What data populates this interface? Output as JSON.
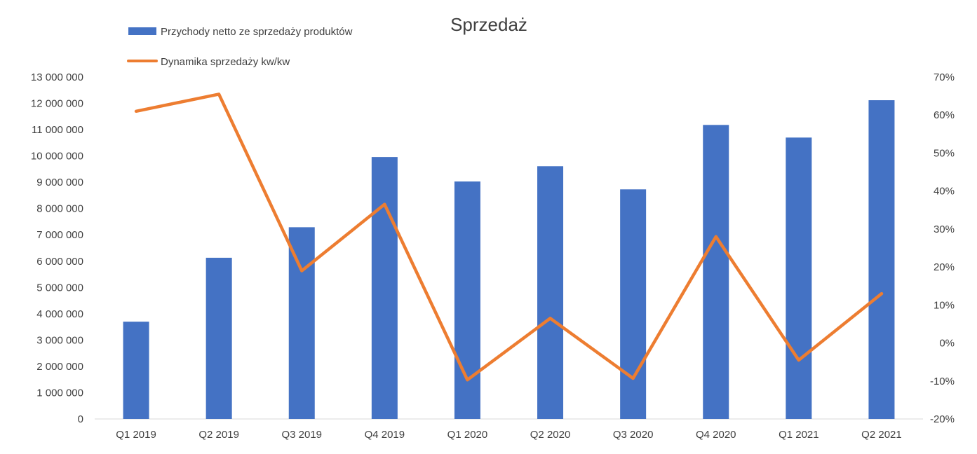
{
  "chart_data": {
    "type": "bar",
    "title": "Sprzedaż",
    "categories": [
      "Q1 2019",
      "Q2 2019",
      "Q3 2019",
      "Q4 2019",
      "Q1 2020",
      "Q2 2020",
      "Q3 2020",
      "Q4 2020",
      "Q1 2021",
      "Q2 2021"
    ],
    "series": [
      {
        "name": "Przychody netto ze sprzedaży produktów",
        "type": "bar",
        "axis": "left",
        "color": "#4472C4",
        "values": [
          3700000,
          6130000,
          7290000,
          9960000,
          9030000,
          9610000,
          8730000,
          11180000,
          10700000,
          12120000
        ]
      },
      {
        "name": "Dynamika sprzedaży kw/kw",
        "type": "line",
        "axis": "right",
        "color": "#ED7D31",
        "values": [
          0.61,
          0.655,
          0.19,
          0.365,
          -0.097,
          0.065,
          -0.093,
          0.28,
          -0.045,
          0.13
        ]
      }
    ],
    "y_left": {
      "min": 0,
      "max": 13000000,
      "ticks": [
        "0",
        "1 000 000",
        "2 000 000",
        "3 000 000",
        "4 000 000",
        "5 000 000",
        "6 000 000",
        "7 000 000",
        "8 000 000",
        "9 000 000",
        "10 000 000",
        "11 000 000",
        "12 000 000",
        "13 000 000"
      ]
    },
    "y_right": {
      "min": -0.2,
      "max": 0.7,
      "ticks": [
        "-20%",
        "-10%",
        "0%",
        "10%",
        "20%",
        "30%",
        "40%",
        "50%",
        "60%",
        "70%"
      ]
    },
    "legend_position": "top-left",
    "grid": false
  }
}
